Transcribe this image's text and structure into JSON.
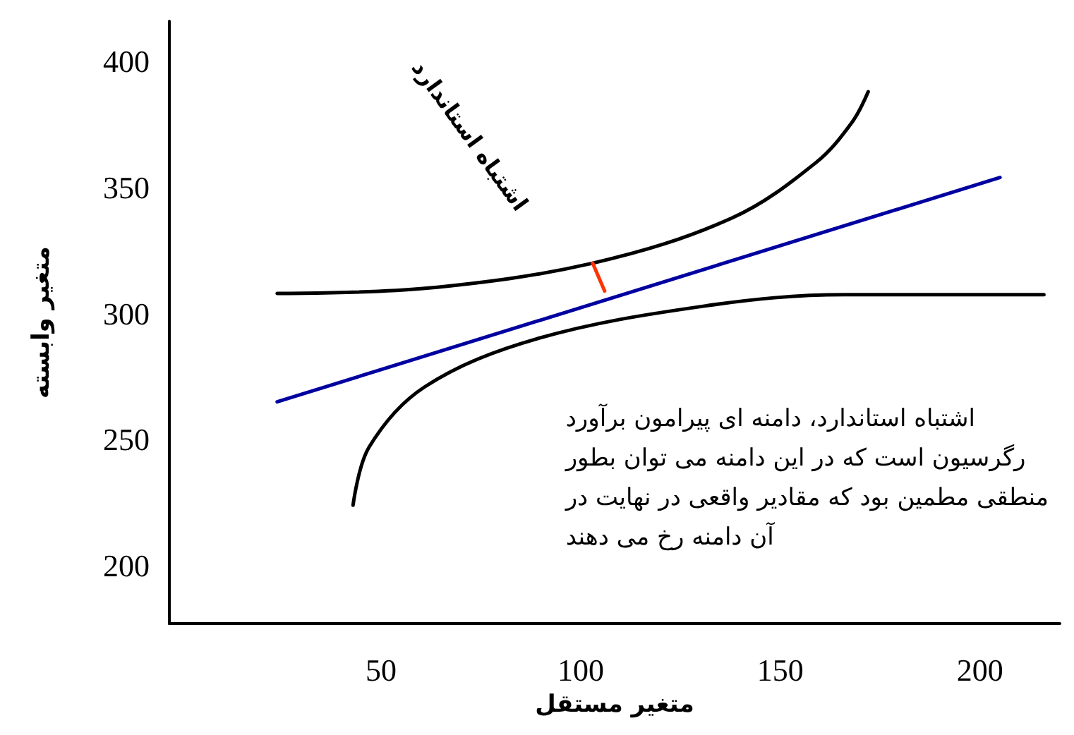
{
  "chart_data": {
    "type": "line",
    "xlabel": "متغیر مستقل",
    "ylabel": "متغیر وابسته",
    "xlim": [
      -3,
      220
    ],
    "xticks": [
      50,
      100,
      150,
      200
    ],
    "ylim": [
      177,
      416
    ],
    "yticks": [
      200,
      250,
      300,
      350,
      400
    ],
    "grid": false,
    "marker": "none",
    "line_style": "solid",
    "series": [
      {
        "color": "#000000",
        "x": [
          24,
          61,
          103,
          138,
          159,
          168,
          172
        ],
        "values": [
          308,
          310,
          320,
          338,
          360,
          376,
          388
        ]
      },
      {
        "color": "#000000",
        "x": [
          43,
          47,
          61,
          89,
          131,
          166,
          216
        ],
        "values": [
          224,
          247,
          271,
          290,
          303,
          307.5,
          307.5
        ]
      },
      {
        "color": "#0000a0",
        "x": [
          24,
          205
        ],
        "values": [
          265,
          354
        ]
      },
      {
        "color": "#ff3300",
        "x": [
          103,
          106
        ],
        "values": [
          320,
          309
        ]
      }
    ],
    "annotations": [
      "اشتباه استاندارد",
      "اشتباه استاندارد، دامنه ای پیرامون برآورد\nرگرسیون است که در این دامنه می توان بطور\nمنطقی مطمین بود که مقادیر واقعی در نهایت در\nآن دامنه رخ می دهند"
    ]
  }
}
